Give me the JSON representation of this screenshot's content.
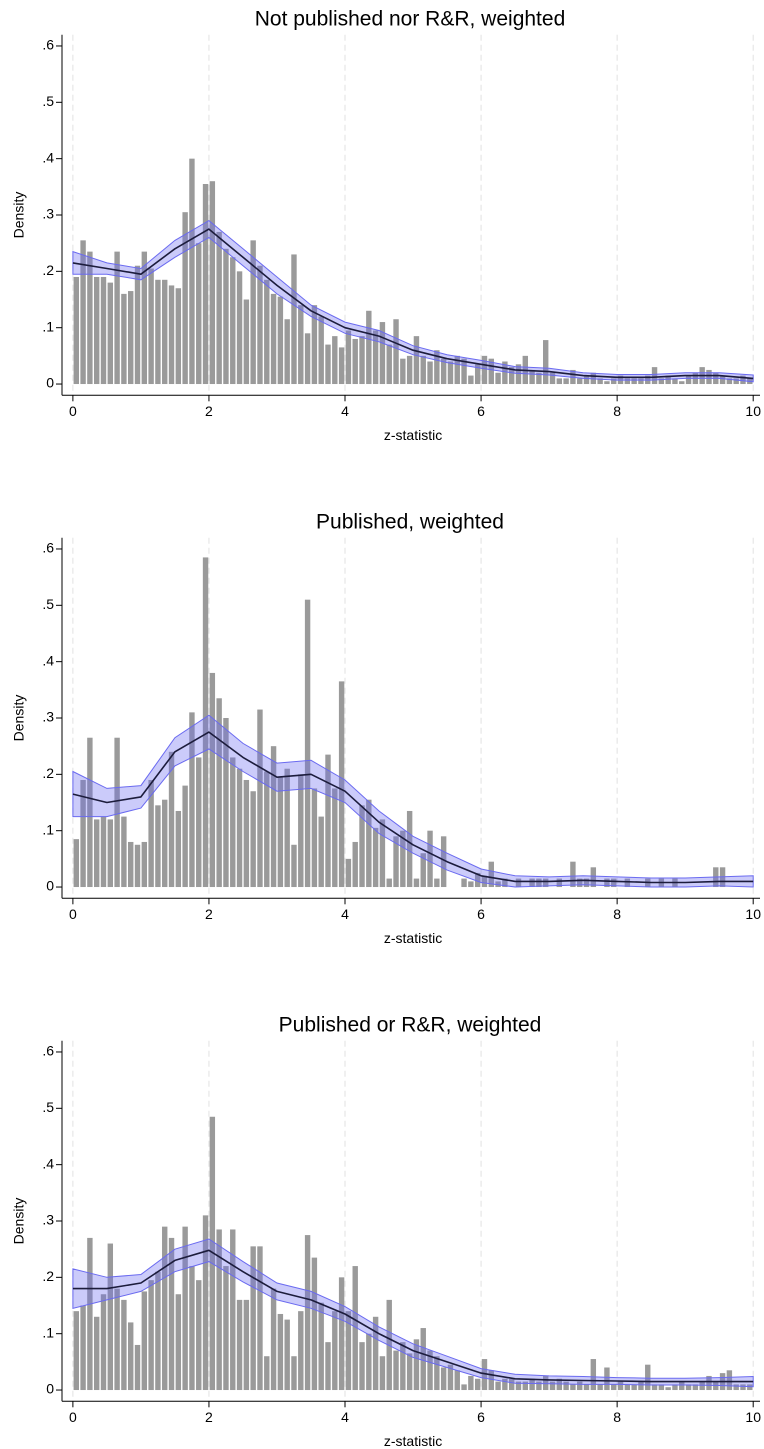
{
  "chart_data": [
    {
      "type": "histogram",
      "title": "Not published nor R&R, weighted",
      "x_label": "z-statistic",
      "y_label": "Density",
      "bins": [
        0,
        0.1,
        0.2,
        0.3,
        0.4,
        0.5,
        0.6,
        0.7,
        0.8,
        0.9,
        1,
        1.1,
        1.2,
        1.3,
        1.4,
        1.5,
        1.6,
        1.7,
        1.8,
        1.9,
        2,
        2.1,
        2.2,
        2.3,
        2.4,
        2.5,
        2.6,
        2.7,
        2.8,
        2.9,
        3,
        3.1,
        3.2,
        3.3,
        3.4,
        3.5,
        3.6,
        3.7,
        3.8,
        3.9,
        4,
        4.1,
        4.2,
        4.3,
        4.4,
        4.5,
        4.6,
        4.7,
        4.8,
        4.9,
        5,
        5.1,
        5.2,
        5.3,
        5.4,
        5.5,
        5.6,
        5.7,
        5.8,
        5.9,
        6,
        6.1,
        6.2,
        6.3,
        6.4,
        6.5,
        6.6,
        6.7,
        6.8,
        6.9,
        7,
        7.1,
        7.2,
        7.3,
        7.4,
        7.5,
        7.6,
        7.7,
        7.8,
        7.9,
        8,
        8.1,
        8.2,
        8.3,
        8.4,
        8.5,
        8.6,
        8.7,
        8.8,
        8.9,
        9,
        9.1,
        9.2,
        9.3,
        9.4,
        9.5,
        9.6,
        9.7,
        9.8,
        9.9,
        10
      ],
      "values": [
        0.19,
        0.255,
        0.235,
        0.19,
        0.19,
        0.18,
        0.235,
        0.16,
        0.165,
        0.21,
        0.235,
        0.205,
        0.185,
        0.185,
        0.175,
        0.17,
        0.305,
        0.4,
        0.25,
        0.355,
        0.36,
        0.27,
        0.24,
        0.225,
        0.2,
        0.15,
        0.255,
        0.21,
        0.185,
        0.16,
        0.155,
        0.115,
        0.23,
        0.14,
        0.09,
        0.14,
        0.12,
        0.07,
        0.085,
        0.065,
        0.095,
        0.08,
        0.085,
        0.13,
        0.095,
        0.11,
        0.07,
        0.115,
        0.045,
        0.05,
        0.085,
        0.05,
        0.04,
        0.06,
        0.045,
        0.04,
        0.05,
        0.045,
        0.015,
        0.035,
        0.05,
        0.045,
        0.02,
        0.04,
        0.03,
        0.035,
        0.05,
        0.025,
        0.02,
        0.078,
        0.02,
        0.01,
        0.01,
        0.025,
        0.01,
        0.015,
        0.02,
        0.01,
        0.005,
        0.01,
        0.015,
        0.01,
        0.01,
        0.01,
        0.015,
        0.03,
        0.01,
        0.015,
        0.01,
        0.005,
        0.015,
        0.02,
        0.03,
        0.025,
        0.02,
        0.015,
        0.01,
        0.01,
        0.015,
        0.01
      ],
      "color": "#9a9a9a",
      "density": {
        "x": [
          0,
          0.5,
          1,
          1.5,
          2,
          2.5,
          3,
          3.5,
          4,
          4.5,
          5,
          5.5,
          6,
          6.5,
          7,
          7.5,
          8,
          8.5,
          9,
          9.5,
          10
        ],
        "values": [
          0.215,
          0.205,
          0.195,
          0.24,
          0.275,
          0.225,
          0.175,
          0.13,
          0.1,
          0.085,
          0.06,
          0.045,
          0.035,
          0.025,
          0.022,
          0.015,
          0.012,
          0.012,
          0.015,
          0.015,
          0.01
        ],
        "upper": [
          0.235,
          0.215,
          0.205,
          0.255,
          0.29,
          0.24,
          0.19,
          0.14,
          0.11,
          0.095,
          0.068,
          0.052,
          0.042,
          0.031,
          0.028,
          0.02,
          0.017,
          0.017,
          0.02,
          0.02,
          0.016
        ],
        "lower": [
          0.195,
          0.195,
          0.185,
          0.225,
          0.26,
          0.21,
          0.16,
          0.12,
          0.09,
          0.075,
          0.052,
          0.038,
          0.028,
          0.019,
          0.016,
          0.01,
          0.007,
          0.007,
          0.01,
          0.01,
          0.004
        ],
        "color": "#1c1c3c",
        "band_color": "#6a6af0"
      },
      "xlim": [
        -0.16,
        10.1
      ],
      "ylim": [
        -0.02,
        0.62
      ],
      "xticks": [
        0,
        2,
        4,
        6,
        8,
        10
      ],
      "yticks": [
        0,
        {
          "value": 0.1,
          "label": ".1"
        },
        {
          "value": 0.2,
          "label": ".2"
        },
        {
          "value": 0.3,
          "label": ".3"
        },
        {
          "value": 0.4,
          "label": ".4"
        },
        {
          "value": 0.5,
          "label": ".5"
        },
        {
          "value": 0.6,
          "label": ".6"
        }
      ],
      "grid": true
    },
    {
      "type": "histogram",
      "title": "Published, weighted",
      "x_label": "z-statistic",
      "y_label": "Density",
      "bins": [
        0,
        0.1,
        0.2,
        0.3,
        0.4,
        0.5,
        0.6,
        0.7,
        0.8,
        0.9,
        1,
        1.1,
        1.2,
        1.3,
        1.4,
        1.5,
        1.6,
        1.7,
        1.8,
        1.9,
        2,
        2.1,
        2.2,
        2.3,
        2.4,
        2.5,
        2.6,
        2.7,
        2.8,
        2.9,
        3,
        3.1,
        3.2,
        3.3,
        3.4,
        3.5,
        3.6,
        3.7,
        3.8,
        3.9,
        4,
        4.1,
        4.2,
        4.3,
        4.4,
        4.5,
        4.6,
        4.7,
        4.8,
        4.9,
        5,
        5.1,
        5.2,
        5.3,
        5.4,
        5.5,
        5.6,
        5.7,
        5.8,
        5.9,
        6,
        6.1,
        6.2,
        6.3,
        6.4,
        6.5,
        6.6,
        6.7,
        6.8,
        6.9,
        7,
        7.1,
        7.2,
        7.3,
        7.4,
        7.5,
        7.6,
        7.7,
        7.8,
        7.9,
        8,
        8.1,
        8.2,
        8.3,
        8.4,
        8.5,
        8.6,
        8.7,
        8.8,
        8.9,
        9,
        9.1,
        9.2,
        9.3,
        9.4,
        9.5,
        9.6,
        9.7,
        9.8,
        9.9,
        10
      ],
      "values": [
        0.085,
        0.19,
        0.265,
        0.12,
        0.125,
        0.12,
        0.265,
        0.125,
        0.08,
        0.075,
        0.08,
        0.19,
        0.145,
        0.155,
        0.24,
        0.135,
        0.18,
        0.31,
        0.23,
        0.585,
        0.38,
        0.335,
        0.3,
        0.23,
        0.21,
        0.19,
        0.17,
        0.315,
        0.205,
        0.25,
        0.195,
        0.21,
        0.075,
        0.2,
        0.51,
        0.175,
        0.125,
        0.235,
        0.175,
        0.365,
        0.05,
        0.08,
        0.145,
        0.155,
        0.105,
        0.12,
        0.015,
        0.09,
        0.1,
        0.135,
        0.015,
        0.06,
        0.1,
        0.015,
        0.09,
        0,
        0,
        0.015,
        0.01,
        0.025,
        0.02,
        0.045,
        0.01,
        0.015,
        0,
        0.015,
        0,
        0.015,
        0.015,
        0.015,
        0,
        0.015,
        0,
        0.045,
        0.015,
        0.015,
        0.035,
        0,
        0.015,
        0.015,
        0,
        0.015,
        0,
        0,
        0.015,
        0,
        0.015,
        0,
        0.015,
        0,
        0,
        0,
        0,
        0,
        0.035,
        0.035,
        0,
        0,
        0,
        0
      ],
      "color": "#9a9a9a",
      "density": {
        "x": [
          0,
          0.5,
          1,
          1.5,
          2,
          2.5,
          3,
          3.5,
          4,
          4.5,
          5,
          5.5,
          6,
          6.5,
          7,
          7.5,
          8,
          8.5,
          9,
          9.5,
          10
        ],
        "values": [
          0.165,
          0.15,
          0.16,
          0.24,
          0.275,
          0.23,
          0.195,
          0.2,
          0.17,
          0.115,
          0.075,
          0.045,
          0.02,
          0.01,
          0.01,
          0.012,
          0.01,
          0.008,
          0.008,
          0.01,
          0.01
        ],
        "upper": [
          0.205,
          0.175,
          0.18,
          0.265,
          0.305,
          0.255,
          0.22,
          0.225,
          0.19,
          0.135,
          0.09,
          0.06,
          0.032,
          0.02,
          0.018,
          0.02,
          0.018,
          0.016,
          0.016,
          0.018,
          0.02
        ],
        "lower": [
          0.125,
          0.125,
          0.14,
          0.215,
          0.245,
          0.205,
          0.17,
          0.175,
          0.15,
          0.095,
          0.06,
          0.03,
          0.008,
          0,
          0.002,
          0.004,
          0.002,
          0,
          0,
          0.002,
          0
        ],
        "color": "#1c1c3c",
        "band_color": "#6a6af0"
      },
      "xlim": [
        -0.16,
        10.1
      ],
      "ylim": [
        -0.02,
        0.62
      ],
      "xticks": [
        0,
        2,
        4,
        6,
        8,
        10
      ],
      "yticks": [
        0,
        {
          "value": 0.1,
          "label": ".1"
        },
        {
          "value": 0.2,
          "label": ".2"
        },
        {
          "value": 0.3,
          "label": ".3"
        },
        {
          "value": 0.4,
          "label": ".4"
        },
        {
          "value": 0.5,
          "label": ".5"
        },
        {
          "value": 0.6,
          "label": ".6"
        }
      ],
      "grid": true
    },
    {
      "type": "histogram",
      "title": "Published or R&R, weighted",
      "x_label": "z-statistic",
      "y_label": "Density",
      "bins": [
        0,
        0.1,
        0.2,
        0.3,
        0.4,
        0.5,
        0.6,
        0.7,
        0.8,
        0.9,
        1,
        1.1,
        1.2,
        1.3,
        1.4,
        1.5,
        1.6,
        1.7,
        1.8,
        1.9,
        2,
        2.1,
        2.2,
        2.3,
        2.4,
        2.5,
        2.6,
        2.7,
        2.8,
        2.9,
        3,
        3.1,
        3.2,
        3.3,
        3.4,
        3.5,
        3.6,
        3.7,
        3.8,
        3.9,
        4,
        4.1,
        4.2,
        4.3,
        4.4,
        4.5,
        4.6,
        4.7,
        4.8,
        4.9,
        5,
        5.1,
        5.2,
        5.3,
        5.4,
        5.5,
        5.6,
        5.7,
        5.8,
        5.9,
        6,
        6.1,
        6.2,
        6.3,
        6.4,
        6.5,
        6.6,
        6.7,
        6.8,
        6.9,
        7,
        7.1,
        7.2,
        7.3,
        7.4,
        7.5,
        7.6,
        7.7,
        7.8,
        7.9,
        8,
        8.1,
        8.2,
        8.3,
        8.4,
        8.5,
        8.6,
        8.7,
        8.8,
        8.9,
        9,
        9.1,
        9.2,
        9.3,
        9.4,
        9.5,
        9.6,
        9.7,
        9.8,
        9.9,
        10
      ],
      "values": [
        0.14,
        0.15,
        0.27,
        0.13,
        0.17,
        0.26,
        0.18,
        0.16,
        0.12,
        0.08,
        0.175,
        0.195,
        0.21,
        0.29,
        0.27,
        0.17,
        0.29,
        0.22,
        0.195,
        0.31,
        0.485,
        0.285,
        0.22,
        0.285,
        0.16,
        0.16,
        0.255,
        0.255,
        0.06,
        0.18,
        0.135,
        0.125,
        0.06,
        0.14,
        0.275,
        0.235,
        0.155,
        0.085,
        0.14,
        0.2,
        0.14,
        0.22,
        0.085,
        0.1,
        0.13,
        0.06,
        0.16,
        0.07,
        0.085,
        0.065,
        0.09,
        0.11,
        0.07,
        0.06,
        0.04,
        0.045,
        0.035,
        0.01,
        0.025,
        0.02,
        0.055,
        0.035,
        0.015,
        0.02,
        0.02,
        0.015,
        0.015,
        0.02,
        0.015,
        0.025,
        0.015,
        0.02,
        0.015,
        0.01,
        0.015,
        0.01,
        0.055,
        0.01,
        0.04,
        0.01,
        0.015,
        0.01,
        0.01,
        0.015,
        0.045,
        0.01,
        0.01,
        0.005,
        0.01,
        0.015,
        0.01,
        0.01,
        0.015,
        0.025,
        0.015,
        0.03,
        0.035,
        0.01,
        0.01,
        0.01
      ],
      "color": "#9a9a9a",
      "density": {
        "x": [
          0,
          0.5,
          1,
          1.5,
          2,
          2.5,
          3,
          3.5,
          4,
          4.5,
          5,
          5.5,
          6,
          6.5,
          7,
          7.5,
          8,
          8.5,
          9,
          9.5,
          10
        ],
        "values": [
          0.18,
          0.18,
          0.19,
          0.23,
          0.248,
          0.21,
          0.175,
          0.16,
          0.135,
          0.1,
          0.07,
          0.05,
          0.03,
          0.02,
          0.018,
          0.017,
          0.016,
          0.015,
          0.015,
          0.015,
          0.015
        ],
        "upper": [
          0.215,
          0.2,
          0.205,
          0.25,
          0.268,
          0.228,
          0.19,
          0.175,
          0.148,
          0.112,
          0.082,
          0.06,
          0.038,
          0.028,
          0.025,
          0.024,
          0.022,
          0.021,
          0.021,
          0.022,
          0.024
        ],
        "lower": [
          0.145,
          0.16,
          0.175,
          0.21,
          0.228,
          0.192,
          0.16,
          0.145,
          0.122,
          0.088,
          0.058,
          0.04,
          0.022,
          0.012,
          0.011,
          0.01,
          0.01,
          0.009,
          0.009,
          0.008,
          0.006
        ],
        "color": "#1c1c3c",
        "band_color": "#6a6af0"
      },
      "xlim": [
        -0.16,
        10.1
      ],
      "ylim": [
        -0.02,
        0.62
      ],
      "xticks": [
        0,
        2,
        4,
        6,
        8,
        10
      ],
      "yticks": [
        0,
        {
          "value": 0.1,
          "label": ".1"
        },
        {
          "value": 0.2,
          "label": ".2"
        },
        {
          "value": 0.3,
          "label": ".3"
        },
        {
          "value": 0.4,
          "label": ".4"
        },
        {
          "value": 0.5,
          "label": ".5"
        },
        {
          "value": 0.6,
          "label": ".6"
        }
      ],
      "grid": true
    }
  ]
}
